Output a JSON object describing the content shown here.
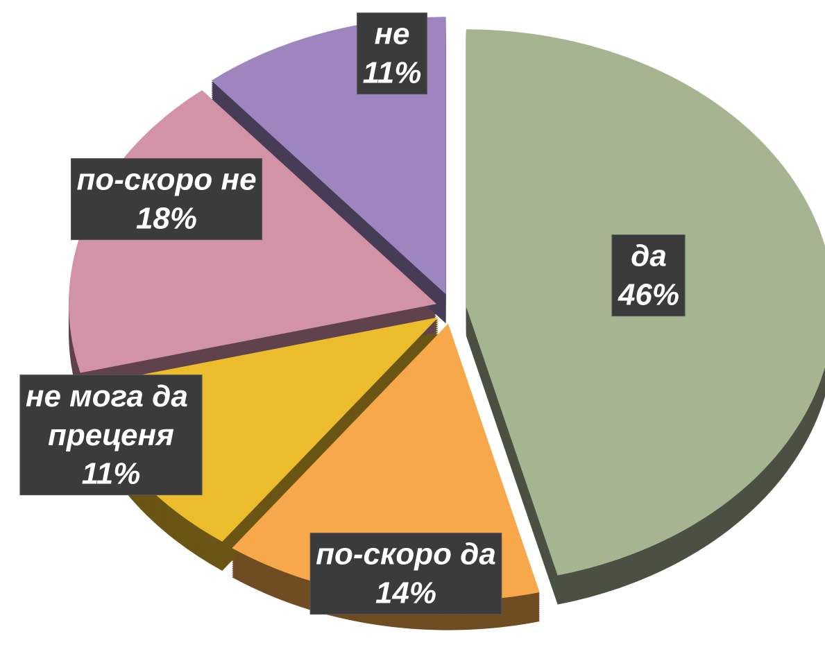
{
  "chart_data": {
    "type": "pie",
    "categories": [
      "да",
      "по-скоро да",
      "не мога да преценя",
      "по-скоро не",
      "не"
    ],
    "values": [
      46,
      14,
      11,
      18,
      11
    ],
    "value_labels": [
      "46%",
      "14%",
      "11%",
      "18%",
      "11%"
    ],
    "colors": [
      "#a5b592",
      "#f6a84a",
      "#ebbd2c",
      "#d393a6",
      "#9d86c0"
    ]
  }
}
